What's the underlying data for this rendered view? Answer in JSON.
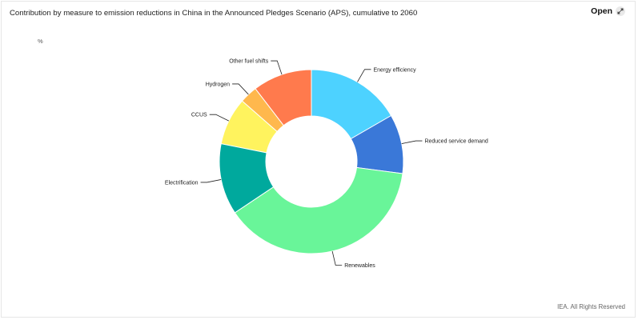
{
  "header": {
    "title": "Contribution by measure to emission reductions in China in the Announced Pledges Scenario (APS), cumulative to 2060",
    "open_label": "Open"
  },
  "footer": {
    "credit": "IEA. All Rights Reserved"
  },
  "chart_data": {
    "type": "pie",
    "style": "donut",
    "title": "Contribution by measure to emission reductions in China in the Announced Pledges Scenario (APS), cumulative to 2060",
    "unit": "%",
    "legend": "none",
    "slices": [
      {
        "label": "Energy efficiency",
        "value": 16,
        "color": "#4dd2ff"
      },
      {
        "label": "Reduced service demand",
        "value": 10,
        "color": "#3a78d8"
      },
      {
        "label": "Renewables",
        "value": 37,
        "color": "#69f599"
      },
      {
        "label": "Electrification",
        "value": 12,
        "color": "#00a99d"
      },
      {
        "label": "CCUS",
        "value": 8,
        "color": "#fff35e"
      },
      {
        "label": "Hydrogen",
        "value": 3,
        "color": "#ffb84d"
      },
      {
        "label": "Other fuel shifts",
        "value": 10,
        "color": "#ff7a4d"
      }
    ]
  }
}
